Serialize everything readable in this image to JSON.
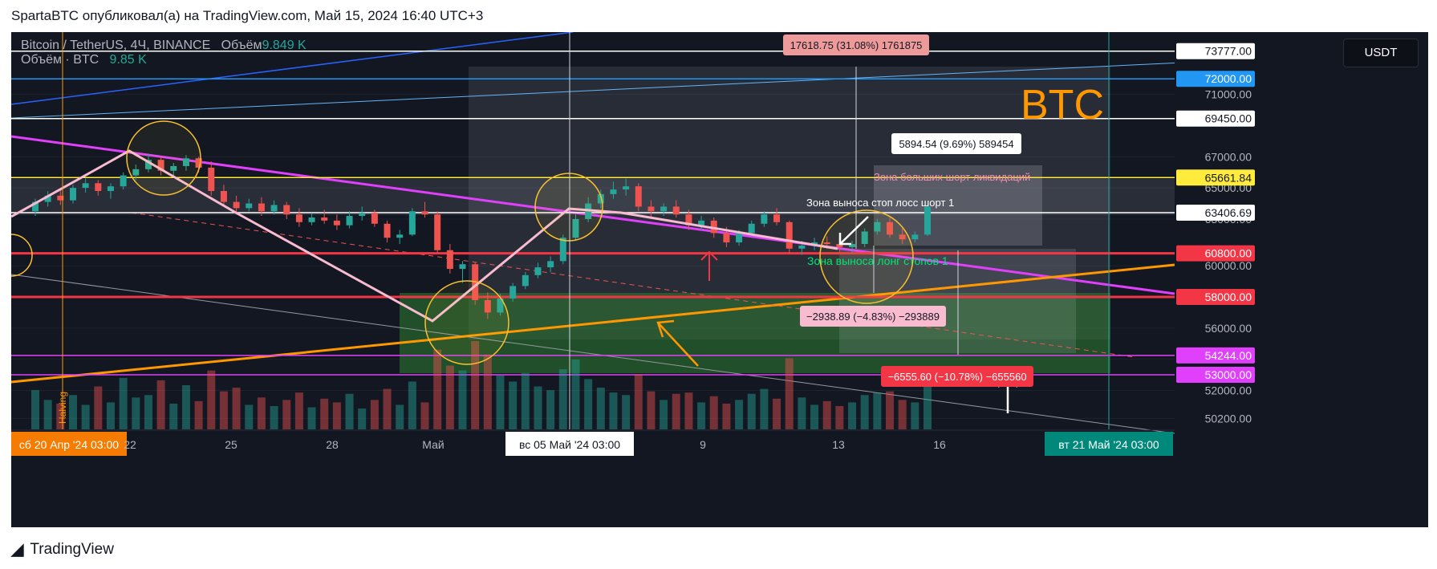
{
  "header": {
    "publish_line": "SpartaBTC опубликовал(а) на TradingView.com, Май 15, 2024 16:40 UTC+3"
  },
  "legend": {
    "symbol_line": "Bitcoin / TetherUS, 4Ч, BINANCE",
    "volume_label": "Объём",
    "volume_value": "9.849 K",
    "volume2_label": "Объём · BTC",
    "volume2_value": "9.85 K"
  },
  "currency_button": "USDT",
  "watermark": "BTC",
  "footer": {
    "brand": "TradingView"
  },
  "colors": {
    "background": "#131722",
    "up": "#26a69a",
    "down": "#ef5350",
    "trendline_magenta": "#e040fb",
    "trendline_orange": "#ff9800",
    "support_red": "#f23645",
    "watermark": "#ff9800"
  },
  "annotations": {
    "measure_top": "17618.75 (31.08%) 1761875",
    "measure_mid": "5894.54 (9.69%) 589454",
    "measure_down": "−2938.89 (−4.83%) −293889",
    "measure_bottom": "−6555.60 (−10.78%) −655560",
    "zone_short_liq": "Зона больших шорт ликвидаций",
    "zone_stop_short": "Зона выноса стоп лосс шорт 1",
    "zone_long_stops": "Зона выноса лонг стопов 1",
    "halving": "Halving"
  },
  "chart_data": {
    "type": "candlestick",
    "symbol": "Bitcoin / TetherUS",
    "interval": "4Ч",
    "exchange": "BINANCE",
    "ylim": [
      49500,
      75000
    ],
    "price_axis_ticks": [
      50200,
      52000,
      54000,
      56000,
      58000,
      60000,
      63000,
      65000,
      67000,
      71000
    ],
    "price_axis_labels": [
      "50200.00",
      "52000.00",
      "54000.00",
      "56000.00",
      "58000.00",
      "60000.00",
      "63000.00",
      "65000.00",
      "67000.00",
      "71000.00"
    ],
    "x_axis_labels": [
      {
        "label": "сб 20 Апр '24   03:00",
        "kind": "highlight-orange"
      },
      {
        "label": "22"
      },
      {
        "label": "25"
      },
      {
        "label": "28"
      },
      {
        "label": "Май"
      },
      {
        "label": "вс 05 Май '24   03:00",
        "kind": "highlight-white"
      },
      {
        "label": "9"
      },
      {
        "label": "13"
      },
      {
        "label": "16"
      },
      {
        "label": "вт 21 Май '24   03:00",
        "kind": "highlight-teal"
      }
    ],
    "horizontal_levels": [
      {
        "price": 73777,
        "label": "73777.00",
        "color": "#ffffff"
      },
      {
        "price": 72000,
        "label": "72000.00",
        "color": "#2196f3"
      },
      {
        "price": 69450,
        "label": "69450.00",
        "color": "#ffffff"
      },
      {
        "price": 65661.84,
        "label": "65661.84",
        "color": "#ffeb3b"
      },
      {
        "price": 63406.69,
        "label": "63406.69",
        "color": "#ffffff"
      },
      {
        "price": 60800,
        "label": "60800.00",
        "color": "#f23645"
      },
      {
        "price": 58000,
        "label": "58000.00",
        "color": "#f23645"
      },
      {
        "price": 54244,
        "label": "54244.00",
        "color": "#e040fb"
      },
      {
        "price": 53000,
        "label": "53000.00",
        "color": "#e040fb"
      }
    ],
    "candles": [
      [
        63500,
        64300,
        63200,
        64100
      ],
      [
        64100,
        64800,
        63800,
        64500
      ],
      [
        64500,
        65000,
        63900,
        64200
      ],
      [
        64200,
        65200,
        64000,
        65000
      ],
      [
        65000,
        65600,
        64700,
        65300
      ],
      [
        65300,
        65500,
        64500,
        64800
      ],
      [
        64800,
        65300,
        64300,
        65100
      ],
      [
        65100,
        66000,
        64900,
        65800
      ],
      [
        65800,
        66500,
        65500,
        66200
      ],
      [
        66200,
        67200,
        66000,
        66800
      ],
      [
        66800,
        67000,
        65800,
        66100
      ],
      [
        66100,
        66600,
        65700,
        66400
      ],
      [
        66400,
        67100,
        66100,
        66900
      ],
      [
        66900,
        67000,
        66000,
        66300
      ],
      [
        66300,
        66700,
        64500,
        64800
      ],
      [
        64800,
        65200,
        63800,
        64100
      ],
      [
        64100,
        64500,
        63300,
        63700
      ],
      [
        63700,
        64300,
        63500,
        64000
      ],
      [
        64000,
        64400,
        63200,
        63500
      ],
      [
        63500,
        64200,
        63300,
        63900
      ],
      [
        63900,
        64100,
        63000,
        63300
      ],
      [
        63300,
        63700,
        62500,
        62800
      ],
      [
        62800,
        63400,
        62600,
        63100
      ],
      [
        63100,
        63600,
        62700,
        62900
      ],
      [
        62900,
        63300,
        62300,
        62600
      ],
      [
        62600,
        63500,
        62400,
        63200
      ],
      [
        63200,
        63800,
        62900,
        63400
      ],
      [
        63400,
        63600,
        62500,
        62700
      ],
      [
        62700,
        62900,
        61500,
        61800
      ],
      [
        61800,
        62300,
        61400,
        62000
      ],
      [
        62000,
        63700,
        61900,
        63500
      ],
      [
        63500,
        64100,
        63100,
        63300
      ],
      [
        63300,
        63500,
        60800,
        61000
      ],
      [
        61000,
        61400,
        59500,
        59800
      ],
      [
        59800,
        60300,
        58900,
        60100
      ],
      [
        60100,
        60200,
        57500,
        57800
      ],
      [
        57800,
        58300,
        56600,
        57000
      ],
      [
        57000,
        58200,
        56800,
        57900
      ],
      [
        57900,
        58900,
        57700,
        58700
      ],
      [
        58700,
        59600,
        58500,
        59400
      ],
      [
        59400,
        60200,
        59200,
        59900
      ],
      [
        59900,
        60600,
        59600,
        60300
      ],
      [
        60300,
        62000,
        60100,
        61800
      ],
      [
        61800,
        63300,
        61600,
        63000
      ],
      [
        63000,
        64400,
        62800,
        64000
      ],
      [
        64000,
        64900,
        63700,
        64600
      ],
      [
        64600,
        65400,
        64300,
        64900
      ],
      [
        64900,
        65600,
        64500,
        65100
      ],
      [
        65100,
        65300,
        63500,
        63800
      ],
      [
        63800,
        64200,
        63000,
        63500
      ],
      [
        63500,
        64000,
        63200,
        63800
      ],
      [
        63800,
        64200,
        63100,
        63300
      ],
      [
        63300,
        63600,
        62300,
        62600
      ],
      [
        62600,
        63200,
        62300,
        62900
      ],
      [
        62900,
        63100,
        61800,
        62100
      ],
      [
        62100,
        62500,
        61200,
        61500
      ],
      [
        61500,
        62300,
        61300,
        62100
      ],
      [
        62100,
        62900,
        61900,
        62700
      ],
      [
        62700,
        63500,
        62500,
        63300
      ],
      [
        63300,
        63700,
        62600,
        62800
      ],
      [
        62800,
        62900,
        60800,
        61100
      ],
      [
        61100,
        61600,
        60700,
        61300
      ],
      [
        61300,
        61800,
        61000,
        61500
      ],
      [
        61500,
        61900,
        61100,
        61400
      ],
      [
        61400,
        61700,
        60900,
        61200
      ],
      [
        61200,
        61600,
        60800,
        61400
      ],
      [
        61400,
        62400,
        61200,
        62200
      ],
      [
        62200,
        63000,
        62000,
        62800
      ],
      [
        62800,
        63100,
        61800,
        62000
      ],
      [
        62000,
        62400,
        61400,
        61700
      ],
      [
        61700,
        62200,
        61500,
        62000
      ],
      [
        62000,
        64000,
        61900,
        63800
      ]
    ],
    "volumes": [
      3.2,
      2.4,
      2.1,
      2.8,
      2.0,
      3.5,
      2.2,
      4.2,
      2.6,
      2.8,
      4.0,
      2.1,
      3.6,
      2.3,
      4.8,
      3.1,
      3.4,
      2.0,
      2.6,
      1.9,
      2.4,
      3.0,
      1.8,
      2.5,
      2.2,
      2.9,
      1.7,
      2.4,
      3.3,
      2.0,
      3.9,
      2.2,
      6.5,
      5.2,
      4.8,
      7.2,
      6.1,
      4.4,
      3.9,
      4.6,
      3.5,
      3.2,
      4.9,
      5.7,
      4.1,
      3.4,
      3.0,
      2.8,
      4.5,
      3.1,
      2.4,
      2.9,
      3.0,
      2.2,
      2.7,
      2.1,
      2.4,
      2.9,
      3.3,
      2.5,
      5.8,
      2.6,
      2.0,
      2.3,
      1.9,
      2.2,
      2.8,
      3.0,
      3.1,
      2.4,
      2.2,
      4.0
    ]
  }
}
